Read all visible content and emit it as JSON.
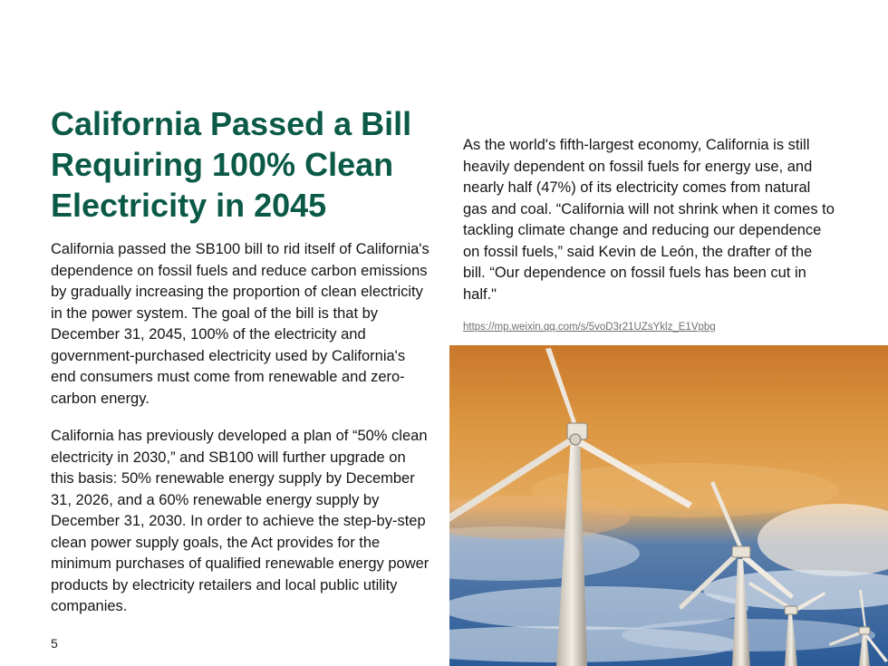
{
  "slide": {
    "title": "California Passed a Bill Requiring 100% Clean Electricity in 2045",
    "left_paragraphs": [
      "California passed the SB100 bill to rid itself of California's dependence on fossil fuels and reduce carbon emissions by gradually increasing the proportion of clean electricity in the power system. The goal of the bill is that by December 31, 2045, 100% of the electricity and government-purchased electricity used by California's end consumers must come from renewable and zero-carbon energy.",
      "California has previously developed a plan of “50% clean electricity in 2030,” and SB100 will further upgrade on this basis: 50% renewable energy supply by December 31, 2026, and a 60% renewable energy supply by December 31, 2030. In order to achieve the step-by-step clean power supply goals, the Act provides for the minimum purchases of qualified renewable energy power products by electricity retailers and local public utility companies."
    ],
    "right_paragraph": "As the world's fifth-largest economy, California is still heavily dependent on fossil fuels for energy use, and nearly half (47%) of its electricity comes from natural gas and coal. “California will not shrink when it comes to tackling climate change and reducing our dependence on fossil fuels,” said Kevin de León, the drafter of the bill. “Our dependence on fossil fuels has been cut in half.\"",
    "source_link": "https://mp.weixin.qq.com/s/5voD3r21UZsYklz_E1Vpbg",
    "page_number": "5",
    "image": {
      "subject": "wind-turbines-photo"
    },
    "colors": {
      "title": "#0b5a48",
      "sky_orange": "#d9852c",
      "sky_blue": "#2f5f9e"
    }
  }
}
